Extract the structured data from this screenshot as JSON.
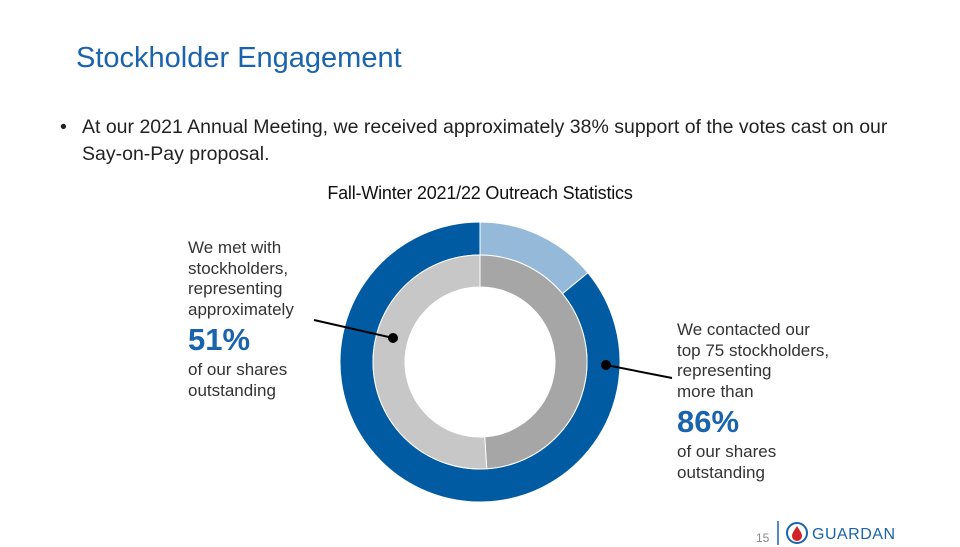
{
  "title": "Stockholder Engagement",
  "bullet": "At our 2021 Annual Meeting, we received approximately 38% support of the votes cast on our Say-on-Pay proposal.",
  "chart_data": {
    "type": "pie",
    "title": "Fall-Winter 2021/22 Outreach Statistics",
    "rings": [
      {
        "ring": "outer",
        "slices": [
          {
            "value": 14,
            "color": "#95b9d9"
          },
          {
            "value": 86,
            "color": "#005ba3"
          }
        ]
      },
      {
        "ring": "inner",
        "slices": [
          {
            "value": 49,
            "color": "#a6a6a6"
          },
          {
            "value": 51,
            "color": "#c7c7c7"
          }
        ]
      }
    ]
  },
  "left_label": {
    "pre": [
      "We met with",
      "stockholders,",
      "representing",
      "approximately"
    ],
    "value": "51%",
    "post": [
      "of our shares",
      "outstanding"
    ]
  },
  "right_label": {
    "pre": [
      "We contacted our",
      "top 75 stockholders,",
      "representing",
      "more than"
    ],
    "value": "86%",
    "post": [
      "of our shares",
      "outstanding"
    ]
  },
  "footer": {
    "page": "15",
    "logo_text": "GUARDANT"
  }
}
